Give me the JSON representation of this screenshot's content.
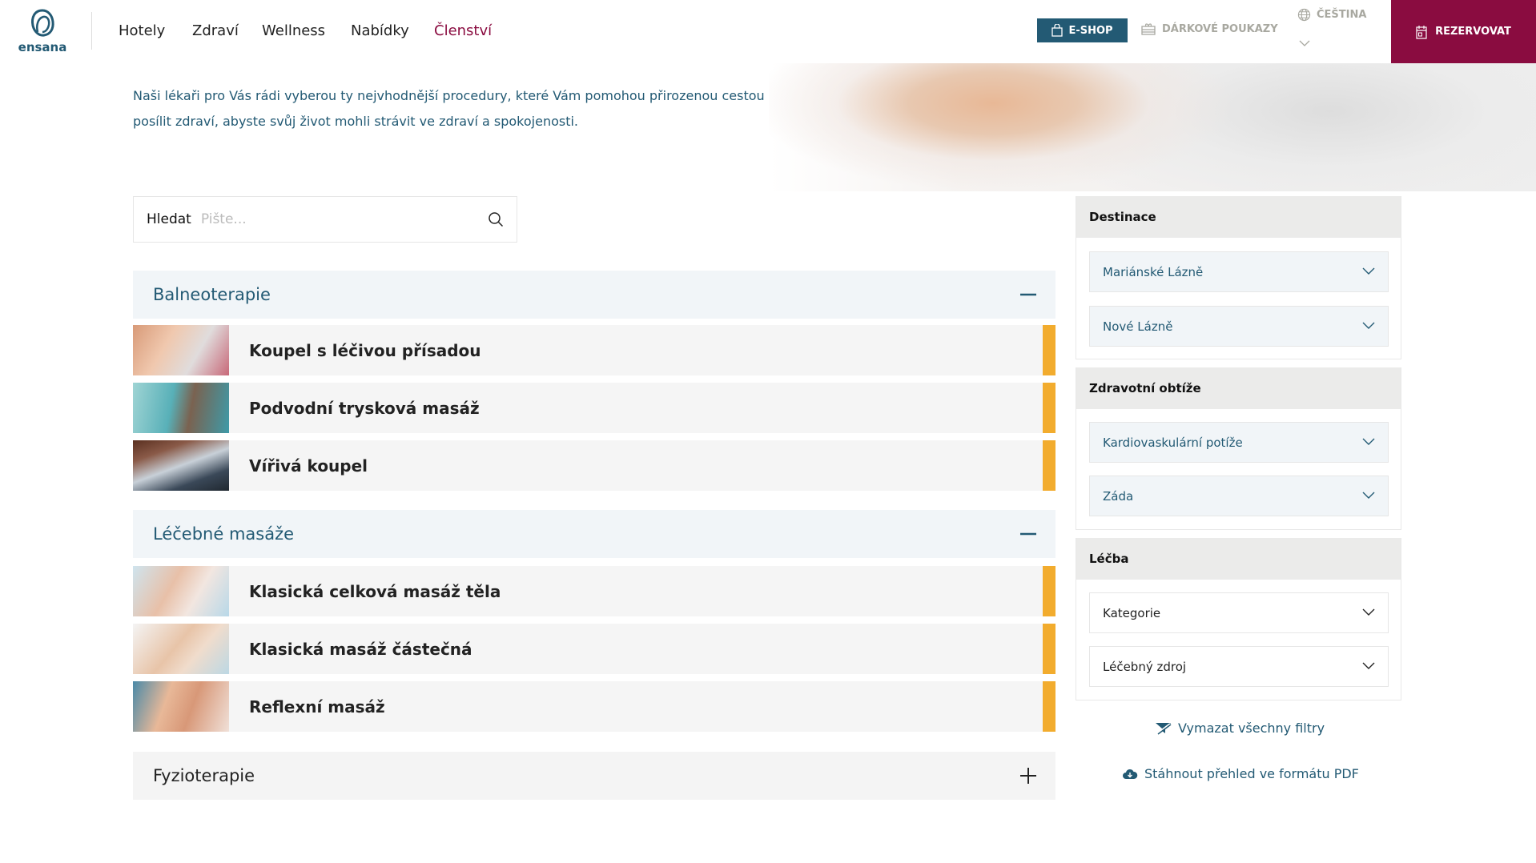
{
  "header": {
    "logo_text": "ensana",
    "nav": [
      {
        "label": "Hotely"
      },
      {
        "label": "Zdraví"
      },
      {
        "label": "Wellness"
      },
      {
        "label": "Nabídky"
      },
      {
        "label": "Členství",
        "active": true
      }
    ],
    "eshop": "E-SHOP",
    "gift": "DÁRKOVÉ POUKAZY",
    "language": "ČEŠTINA",
    "reserve": "REZERVOVAT"
  },
  "intro": "Naši lékaři pro Vás rádi vyberou ty nejvhodnější procedury, které Vám pomohou přirozenou cestou posílit zdraví, abyste svůj život mohli strávit ve zdraví a spokojenosti.",
  "search": {
    "label": "Hledat",
    "placeholder": "Pište..."
  },
  "categories": [
    {
      "title": "Balneoterapie",
      "expanded": true,
      "items": [
        "Koupel s léčivou přísadou",
        "Podvodní trysková masáž",
        "Vířivá koupel"
      ]
    },
    {
      "title": "Léčebné masáže",
      "expanded": true,
      "items": [
        "Klasická celková masáž těla",
        "Klasická masáž částečná",
        "Reflexní masáž"
      ]
    },
    {
      "title": "Fyzioterapie",
      "expanded": false,
      "items": []
    }
  ],
  "filters": [
    {
      "title": "Destinace",
      "options": [
        "Mariánské Lázně",
        "Nové Lázně"
      ],
      "selected": true
    },
    {
      "title": "Zdravotní obtíže",
      "options": [
        "Kardiovaskulární potíže",
        "Záda"
      ],
      "selected": true
    },
    {
      "title": "Léčba",
      "options": [
        "Kategorie",
        "Léčebný zdroj"
      ],
      "selected": false
    }
  ],
  "clear_filters": "Vymazat všechny filtry",
  "download_pdf": "Stáhnout přehled ve formátu PDF",
  "colors": {
    "brand": "#235a74",
    "accent": "#8a0c40",
    "marker": "#f2ac2e"
  }
}
